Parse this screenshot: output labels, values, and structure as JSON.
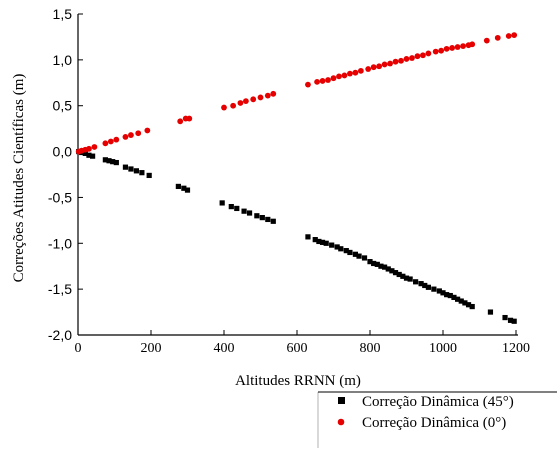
{
  "chart_data": {
    "type": "scatter",
    "xlabel": "Altitudes RRNN (m)",
    "ylabel": "Correções Atitudes Científicas (m)",
    "xlim": [
      0,
      1200
    ],
    "ylim": [
      -2.0,
      1.5
    ],
    "x_ticks": [
      "0",
      "200",
      "400",
      "600",
      "800",
      "1000",
      "1200"
    ],
    "y_ticks": [
      "-2,0",
      "-1,5",
      "-1,0",
      "-0,5",
      "0,0",
      "0,5",
      "1,0",
      "1,5"
    ],
    "grid": false,
    "legend_position": "below-right",
    "series": [
      {
        "name": "Correção Dinâmica (45°)",
        "marker": "square",
        "color": "#000000",
        "points": [
          [
            2,
            0.0
          ],
          [
            10,
            -0.01
          ],
          [
            20,
            -0.02
          ],
          [
            30,
            -0.04
          ],
          [
            40,
            -0.05
          ],
          [
            75,
            -0.09
          ],
          [
            85,
            -0.1
          ],
          [
            95,
            -0.11
          ],
          [
            105,
            -0.12
          ],
          [
            130,
            -0.17
          ],
          [
            145,
            -0.19
          ],
          [
            160,
            -0.21
          ],
          [
            175,
            -0.23
          ],
          [
            195,
            -0.26
          ],
          [
            275,
            -0.38
          ],
          [
            290,
            -0.4
          ],
          [
            300,
            -0.42
          ],
          [
            395,
            -0.56
          ],
          [
            420,
            -0.6
          ],
          [
            435,
            -0.62
          ],
          [
            455,
            -0.65
          ],
          [
            470,
            -0.67
          ],
          [
            490,
            -0.7
          ],
          [
            505,
            -0.72
          ],
          [
            520,
            -0.74
          ],
          [
            535,
            -0.76
          ],
          [
            630,
            -0.93
          ],
          [
            650,
            -0.96
          ],
          [
            660,
            -0.98
          ],
          [
            670,
            -0.99
          ],
          [
            680,
            -1.0
          ],
          [
            695,
            -1.02
          ],
          [
            710,
            -1.04
          ],
          [
            720,
            -1.06
          ],
          [
            735,
            -1.08
          ],
          [
            745,
            -1.1
          ],
          [
            760,
            -1.12
          ],
          [
            770,
            -1.14
          ],
          [
            785,
            -1.16
          ],
          [
            800,
            -1.2
          ],
          [
            810,
            -1.22
          ],
          [
            820,
            -1.23
          ],
          [
            830,
            -1.25
          ],
          [
            840,
            -1.26
          ],
          [
            850,
            -1.28
          ],
          [
            860,
            -1.3
          ],
          [
            870,
            -1.32
          ],
          [
            880,
            -1.34
          ],
          [
            890,
            -1.36
          ],
          [
            900,
            -1.38
          ],
          [
            910,
            -1.39
          ],
          [
            925,
            -1.42
          ],
          [
            940,
            -1.44
          ],
          [
            950,
            -1.46
          ],
          [
            960,
            -1.48
          ],
          [
            975,
            -1.5
          ],
          [
            990,
            -1.52
          ],
          [
            1000,
            -1.54
          ],
          [
            1010,
            -1.56
          ],
          [
            1020,
            -1.57
          ],
          [
            1030,
            -1.59
          ],
          [
            1040,
            -1.61
          ],
          [
            1050,
            -1.63
          ],
          [
            1060,
            -1.65
          ],
          [
            1070,
            -1.67
          ],
          [
            1080,
            -1.69
          ],
          [
            1130,
            -1.75
          ],
          [
            1170,
            -1.81
          ],
          [
            1185,
            -1.84
          ],
          [
            1195,
            -1.85
          ]
        ]
      },
      {
        "name": "Correção Dinâmica (0°)",
        "marker": "circle",
        "color": "#e60000",
        "points": [
          [
            2,
            0.0
          ],
          [
            10,
            0.01
          ],
          [
            20,
            0.02
          ],
          [
            30,
            0.03
          ],
          [
            45,
            0.05
          ],
          [
            75,
            0.09
          ],
          [
            90,
            0.11
          ],
          [
            105,
            0.13
          ],
          [
            130,
            0.16
          ],
          [
            145,
            0.18
          ],
          [
            165,
            0.2
          ],
          [
            190,
            0.23
          ],
          [
            280,
            0.33
          ],
          [
            295,
            0.36
          ],
          [
            305,
            0.36
          ],
          [
            400,
            0.48
          ],
          [
            425,
            0.5
          ],
          [
            445,
            0.53
          ],
          [
            460,
            0.55
          ],
          [
            480,
            0.57
          ],
          [
            500,
            0.59
          ],
          [
            520,
            0.61
          ],
          [
            535,
            0.63
          ],
          [
            630,
            0.73
          ],
          [
            655,
            0.76
          ],
          [
            670,
            0.77
          ],
          [
            685,
            0.78
          ],
          [
            700,
            0.8
          ],
          [
            715,
            0.82
          ],
          [
            730,
            0.83
          ],
          [
            745,
            0.85
          ],
          [
            760,
            0.86
          ],
          [
            775,
            0.88
          ],
          [
            795,
            0.9
          ],
          [
            810,
            0.92
          ],
          [
            825,
            0.93
          ],
          [
            840,
            0.95
          ],
          [
            855,
            0.96
          ],
          [
            870,
            0.98
          ],
          [
            885,
            0.99
          ],
          [
            900,
            1.01
          ],
          [
            915,
            1.02
          ],
          [
            930,
            1.04
          ],
          [
            945,
            1.05
          ],
          [
            960,
            1.07
          ],
          [
            980,
            1.09
          ],
          [
            995,
            1.1
          ],
          [
            1010,
            1.12
          ],
          [
            1025,
            1.13
          ],
          [
            1040,
            1.14
          ],
          [
            1055,
            1.15
          ],
          [
            1070,
            1.16
          ],
          [
            1080,
            1.17
          ],
          [
            1120,
            1.21
          ],
          [
            1150,
            1.24
          ],
          [
            1180,
            1.26
          ],
          [
            1195,
            1.27
          ]
        ]
      }
    ]
  }
}
